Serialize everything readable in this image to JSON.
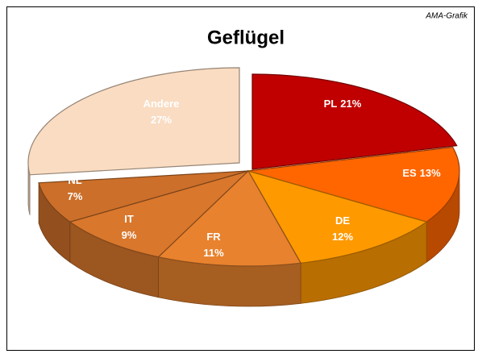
{
  "chart_data": {
    "type": "pie",
    "title": "Geflügel",
    "annotation": "AMA-Grafik",
    "categories": [
      "PL",
      "ES",
      "DE",
      "FR",
      "IT",
      "NL",
      "Andere"
    ],
    "values": [
      21,
      13,
      12,
      11,
      9,
      7,
      27
    ],
    "value_labels": [
      "21%",
      "13%",
      "12%",
      "11%",
      "9%",
      "7%",
      "27%"
    ],
    "colors": [
      "#c00000",
      "#ff6600",
      "#ff9900",
      "#e8822e",
      "#d9772c",
      "#cc6f2a",
      "#f9dcc2"
    ]
  }
}
